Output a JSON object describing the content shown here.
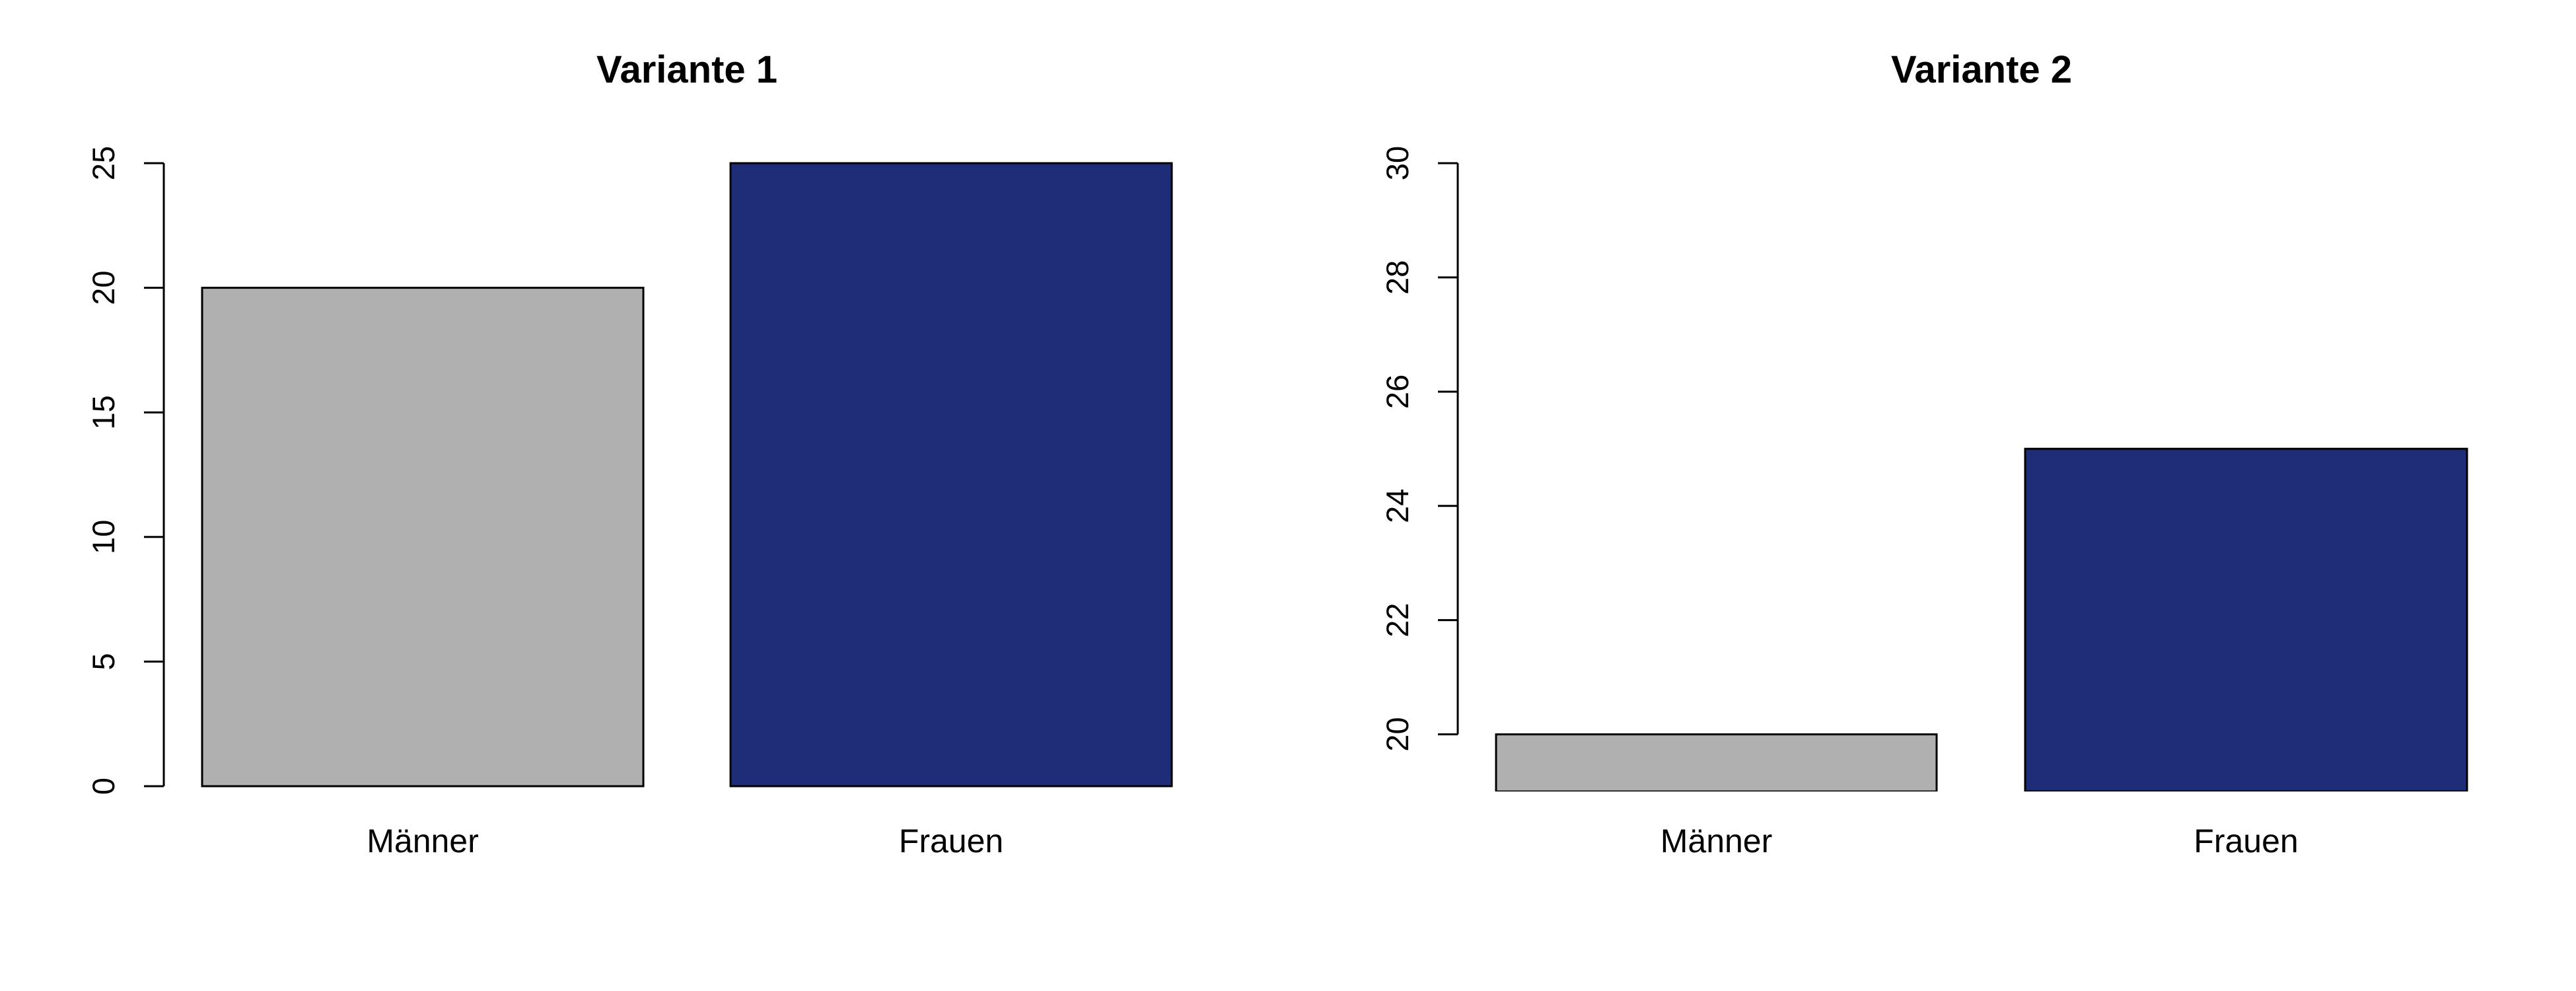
{
  "chart_data": [
    {
      "type": "bar",
      "title": "Variante 1",
      "categories": [
        "Männer",
        "Frauen"
      ],
      "values": [
        20,
        25
      ],
      "colors": [
        "#b0b0b0",
        "#1f2d78"
      ],
      "ylim": [
        0,
        25
      ],
      "yticks": [
        "0",
        "5",
        "10",
        "15",
        "20",
        "25"
      ],
      "ytick_values": [
        0,
        5,
        10,
        15,
        20,
        25
      ],
      "xlabel": "",
      "ylabel": "",
      "grid": false
    },
    {
      "type": "bar",
      "title": "Variante 2",
      "categories": [
        "Männer",
        "Frauen"
      ],
      "values": [
        20,
        25
      ],
      "colors": [
        "#b0b0b0",
        "#1f2d78"
      ],
      "ylim": [
        19,
        30
      ],
      "yticks": [
        "20",
        "22",
        "24",
        "26",
        "28",
        "30"
      ],
      "ytick_values": [
        20,
        22,
        24,
        26,
        28,
        30
      ],
      "xlabel": "",
      "ylabel": "",
      "grid": false
    }
  ]
}
